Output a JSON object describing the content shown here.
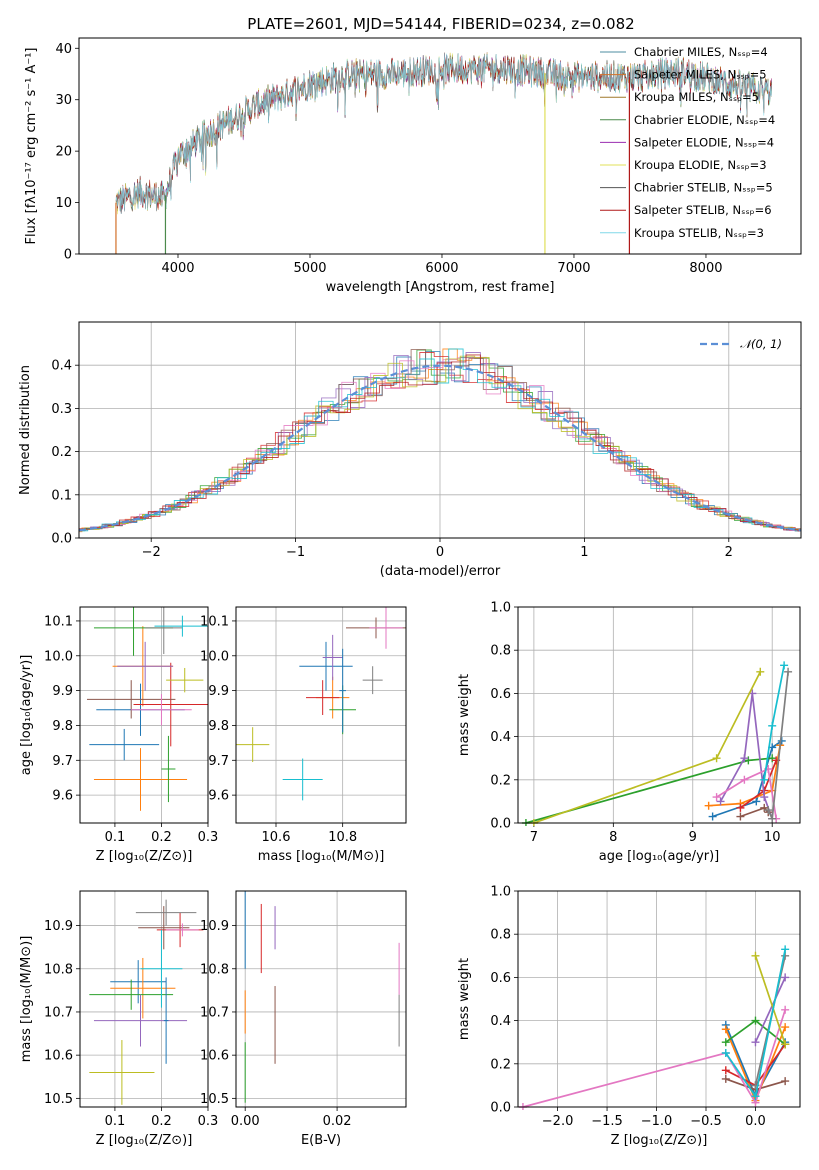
{
  "figure": {
    "title": "PLATE=2601, MJD=54144, FIBERID=0234, z=0.082"
  },
  "colors": {
    "series": [
      "#1f77b4",
      "#ff7f0e",
      "#2ca02c",
      "#d62728",
      "#9467bd",
      "#8c564b",
      "#e377c2",
      "#7f7f7f",
      "#bcbd22",
      "#17becf"
    ],
    "spectrum_models": [
      "#4c8ca0",
      "#d2702a",
      "#a0782a",
      "#4c8a4c",
      "#9a2db0",
      "#e0e05a",
      "#555555",
      "#b01818",
      "#80d8e8"
    ],
    "gaussian": "#5b8fd6",
    "grid": "#b0b0b0"
  },
  "chart_data": [
    {
      "id": "spectrum",
      "type": "line",
      "xlabel": "wavelength [Angstrom, rest frame]",
      "ylabel": "Flux [fλ10⁻¹⁷ erg cm⁻² s⁻¹ A⁻¹]",
      "xlim": [
        3250,
        8720
      ],
      "ylim": [
        0,
        42
      ],
      "xticks": [
        4000,
        5000,
        6000,
        7000,
        8000
      ],
      "yticks": [
        0,
        10,
        20,
        30,
        40
      ],
      "grid": false,
      "legend_position": "right",
      "series": [
        {
          "name": "Chabrier MILES, Nₛₛₚ=4"
        },
        {
          "name": "Salpeter MILES, Nₛₛₚ=5"
        },
        {
          "name": "Kroupa MILES, Nₛₛₚ=5"
        },
        {
          "name": "Chabrier ELODIE, Nₛₛₚ=4"
        },
        {
          "name": "Salpeter ELODIE, Nₛₛₚ=4"
        },
        {
          "name": "Kroupa ELODIE, Nₛₛₚ=3"
        },
        {
          "name": "Chabrier STELIB, Nₛₛₚ=5"
        },
        {
          "name": "Salpeter STELIB, Nₛₛₚ=6"
        },
        {
          "name": "Kroupa STELIB, Nₛₛₚ=3"
        }
      ],
      "continuum": {
        "x": [
          3530,
          3700,
          3900,
          4000,
          4200,
          4400,
          4600,
          4800,
          5000,
          5300,
          5600,
          6000,
          6500,
          7000,
          7500,
          7800,
          8200,
          8500
        ],
        "y": [
          10,
          12,
          11,
          19,
          23,
          26,
          29,
          31,
          33,
          35,
          35,
          36,
          36,
          34.5,
          34.5,
          35.5,
          33,
          31.5
        ]
      },
      "dips": [
        {
          "x": 3530,
          "y": 0
        },
        {
          "x": 3905,
          "y": 0
        },
        {
          "x": 6780,
          "y": 0
        },
        {
          "x": 7420,
          "y": 0
        }
      ]
    },
    {
      "id": "residuals",
      "type": "histogram",
      "xlabel": "(data-model)/error",
      "ylabel": "Normed distribution",
      "xlim": [
        -2.5,
        2.5
      ],
      "ylim": [
        0,
        0.5
      ],
      "xticks": [
        -2,
        -1,
        0,
        1,
        2
      ],
      "yticks": [
        0.0,
        0.1,
        0.2,
        0.3,
        0.4
      ],
      "grid": true,
      "legend_position": "top-right",
      "reference": {
        "name": "𝒩(0, 1)",
        "mean": 0,
        "sigma": 1
      }
    },
    {
      "id": "age_vs_Z",
      "type": "scatter",
      "xlabel": "Z [log₁₀(Z/Z⊙)]",
      "ylabel": "age  [log₁₀(age/yr)]",
      "xlim": [
        0.025,
        0.3
      ],
      "ylim": [
        9.52,
        10.14
      ],
      "xticks": [
        0.1,
        0.2,
        0.3
      ],
      "yticks": [
        9.6,
        9.7,
        9.8,
        9.9,
        10.0,
        10.1
      ],
      "grid": true,
      "points": [
        {
          "x": 0.155,
          "xerr": 0.095,
          "y": 9.845,
          "yerr": 0.075
        },
        {
          "x": 0.16,
          "xerr": 0.065,
          "y": 9.97,
          "yerr": 0.115
        },
        {
          "x": 0.14,
          "xerr": 0.085,
          "y": 10.08,
          "yerr": 0.08
        },
        {
          "x": 0.22,
          "xerr": 0.08,
          "y": 9.86,
          "yerr": 0.12
        },
        {
          "x": 0.165,
          "xerr": 0.06,
          "y": 9.97,
          "yerr": 0.07
        },
        {
          "x": 0.135,
          "xerr": 0.095,
          "y": 9.875,
          "yerr": 0.055
        },
        {
          "x": 0.2,
          "xerr": 0.065,
          "y": 9.845,
          "yerr": 0.045
        },
        {
          "x": 0.205,
          "xerr": 0.04,
          "y": 10.08,
          "yerr": 0.075
        },
        {
          "x": 0.25,
          "xerr": 0.04,
          "y": 9.93,
          "yerr": 0.035
        },
        {
          "x": 0.245,
          "xerr": 0.06,
          "y": 10.085,
          "yerr": 0.03
        },
        {
          "x": 0.12,
          "xerr": 0.075,
          "y": 9.745,
          "yerr": 0.045
        },
        {
          "x": 0.155,
          "xerr": 0.1,
          "y": 9.645,
          "yerr": 0.09
        },
        {
          "x": 0.215,
          "xerr": 0.015,
          "y": 9.675,
          "yerr": 0.095
        }
      ]
    },
    {
      "id": "age_vs_mass",
      "type": "scatter",
      "xlabel": "mass [log₁₀(M/M⊙)]",
      "ylabel": "",
      "xlim": [
        10.48,
        10.99
      ],
      "ylim": [
        9.52,
        10.14
      ],
      "xticks": [
        10.6,
        10.8
      ],
      "yticks": [
        9.6,
        9.7,
        9.8,
        9.9,
        10.0,
        10.1
      ],
      "grid": true,
      "points": [
        {
          "x": 10.75,
          "xerr": 0.08,
          "y": 9.97,
          "yerr": 0.07
        },
        {
          "x": 10.77,
          "xerr": 0.05,
          "y": 9.88,
          "yerr": 0.06
        },
        {
          "x": 10.8,
          "xerr": 0.04,
          "y": 9.845,
          "yerr": 0.07
        },
        {
          "x": 10.74,
          "xerr": 0.05,
          "y": 9.88,
          "yerr": 0.05
        },
        {
          "x": 10.77,
          "xerr": 0.03,
          "y": 9.995,
          "yerr": 0.065
        },
        {
          "x": 10.9,
          "xerr": 0.09,
          "y": 10.08,
          "yerr": 0.03
        },
        {
          "x": 10.93,
          "xerr": 0.05,
          "y": 10.08,
          "yerr": 0.06
        },
        {
          "x": 10.89,
          "xerr": 0.03,
          "y": 9.93,
          "yerr": 0.04
        },
        {
          "x": 10.53,
          "xerr": 0.05,
          "y": 9.745,
          "yerr": 0.05
        },
        {
          "x": 10.68,
          "xerr": 0.06,
          "y": 9.645,
          "yerr": 0.06
        },
        {
          "x": 10.8,
          "xerr": 0.01,
          "y": 9.9,
          "yerr": 0.12
        }
      ]
    },
    {
      "id": "mass_weight_vs_age",
      "type": "line",
      "xlabel": "age  [log₁₀(age/yr)]",
      "ylabel": "mass weight",
      "xlim": [
        6.8,
        10.35
      ],
      "ylim": [
        0,
        1.0
      ],
      "xticks": [
        7,
        8,
        9,
        10
      ],
      "yticks": [
        0.0,
        0.2,
        0.4,
        0.6,
        0.8,
        1.0
      ],
      "grid": true,
      "series": [
        {
          "x": [
            9.25,
            9.8,
            10.0,
            10.12
          ],
          "y": [
            0.03,
            0.1,
            0.35,
            0.38
          ]
        },
        {
          "x": [
            9.2,
            9.6,
            10.0,
            10.1
          ],
          "y": [
            0.08,
            0.09,
            0.15,
            0.36
          ]
        },
        {
          "x": [
            6.9,
            9.7,
            10.0
          ],
          "y": [
            0.0,
            0.29,
            0.3
          ]
        },
        {
          "x": [
            9.6,
            9.9,
            10.05
          ],
          "y": [
            0.07,
            0.15,
            0.29
          ]
        },
        {
          "x": [
            9.35,
            9.65,
            9.75,
            9.9,
            10.0
          ],
          "y": [
            0.1,
            0.3,
            0.6,
            0.12,
            0.02
          ]
        },
        {
          "x": [
            9.6,
            9.9,
            9.95
          ],
          "y": [
            0.03,
            0.07,
            0.05
          ]
        },
        {
          "x": [
            9.3,
            9.65,
            9.95,
            10.05
          ],
          "y": [
            0.12,
            0.2,
            0.25,
            0.02
          ]
        },
        {
          "x": [
            9.95,
            10.0,
            10.2
          ],
          "y": [
            0.06,
            0.02,
            0.7
          ]
        },
        {
          "x": [
            7.0,
            9.3,
            9.85
          ],
          "y": [
            0.0,
            0.3,
            0.7
          ]
        },
        {
          "x": [
            9.9,
            10.0,
            10.15
          ],
          "y": [
            0.2,
            0.45,
            0.73
          ]
        }
      ]
    },
    {
      "id": "mass_vs_Z",
      "type": "scatter",
      "xlabel": "Z [log₁₀(Z/Z⊙)]",
      "ylabel": "mass [log₁₀(M/M⊙)]",
      "xlim": [
        0.025,
        0.3
      ],
      "ylim": [
        10.48,
        10.98
      ],
      "xticks": [
        0.1,
        0.2,
        0.3
      ],
      "yticks": [
        10.5,
        10.6,
        10.7,
        10.8,
        10.9
      ],
      "grid": true,
      "points": [
        {
          "x": 0.15,
          "xerr": 0.06,
          "y": 10.77,
          "yerr": 0.05
        },
        {
          "x": 0.16,
          "xerr": 0.07,
          "y": 10.755,
          "yerr": 0.07
        },
        {
          "x": 0.135,
          "xerr": 0.09,
          "y": 10.74,
          "yerr": 0.035
        },
        {
          "x": 0.24,
          "xerr": 0.05,
          "y": 10.89,
          "yerr": 0.04
        },
        {
          "x": 0.155,
          "xerr": 0.1,
          "y": 10.68,
          "yerr": 0.06
        },
        {
          "x": 0.205,
          "xerr": 0.055,
          "y": 10.895,
          "yerr": 0.05
        },
        {
          "x": 0.245,
          "xerr": 0.035,
          "y": 10.89,
          "yerr": 0.015
        },
        {
          "x": 0.21,
          "xerr": 0.065,
          "y": 10.93,
          "yerr": 0.03
        },
        {
          "x": 0.115,
          "xerr": 0.07,
          "y": 10.56,
          "yerr": 0.075
        },
        {
          "x": 0.2,
          "xerr": 0.045,
          "y": 10.8,
          "yerr": 0.09
        },
        {
          "x": 0.21,
          "xerr": 0.005,
          "y": 10.68,
          "yerr": 0.1
        }
      ]
    },
    {
      "id": "mass_vs_EBV",
      "type": "scatter",
      "xlabel": "E(B-V)",
      "ylabel": "",
      "xlim": [
        -0.002,
        0.035
      ],
      "ylim": [
        10.48,
        10.98
      ],
      "xticks": [
        0.0,
        0.02
      ],
      "yticks": [
        10.5,
        10.6,
        10.7,
        10.8,
        10.9
      ],
      "grid": true,
      "points": [
        {
          "x": 0.0,
          "xerr": 0,
          "y": 10.89,
          "yerr": 0.09
        },
        {
          "x": 0.0,
          "xerr": 0,
          "y": 10.7,
          "yerr": 0.05
        },
        {
          "x": 0.0,
          "xerr": 0,
          "y": 10.56,
          "yerr": 0.07
        },
        {
          "x": 0.0035,
          "xerr": 0,
          "y": 10.87,
          "yerr": 0.08
        },
        {
          "x": 0.0065,
          "xerr": 0,
          "y": 10.895,
          "yerr": 0.05
        },
        {
          "x": 0.0065,
          "xerr": 0,
          "y": 10.67,
          "yerr": 0.09
        },
        {
          "x": 0.0335,
          "xerr": 0,
          "y": 10.8,
          "yerr": 0.06
        },
        {
          "x": 0.0335,
          "xerr": 0,
          "y": 10.68,
          "yerr": 0.06
        }
      ]
    },
    {
      "id": "mass_weight_vs_Z",
      "type": "line",
      "xlabel": "Z [log₁₀(Z/Z⊙)]",
      "ylabel": "mass weight",
      "xlim": [
        -2.4,
        0.45
      ],
      "ylim": [
        0,
        1.0
      ],
      "xticks": [
        -2.0,
        -1.5,
        -1.0,
        -0.5,
        0.0
      ],
      "yticks": [
        0.0,
        0.2,
        0.4,
        0.6,
        0.8,
        1.0
      ],
      "grid": true,
      "series": [
        {
          "x": [
            -0.3,
            0.0,
            0.3
          ],
          "y": [
            0.38,
            0.05,
            0.3
          ]
        },
        {
          "x": [
            -0.3,
            0.0,
            0.3
          ],
          "y": [
            0.36,
            0.03,
            0.37
          ]
        },
        {
          "x": [
            -0.3,
            0.0,
            0.3
          ],
          "y": [
            0.3,
            0.4,
            0.29
          ]
        },
        {
          "x": [
            -0.3,
            0.0,
            0.3
          ],
          "y": [
            0.17,
            0.1,
            0.29
          ]
        },
        {
          "x": [
            0.0,
            0.3
          ],
          "y": [
            0.3,
            0.6
          ]
        },
        {
          "x": [
            -0.3,
            0.0,
            0.3
          ],
          "y": [
            0.13,
            0.08,
            0.12
          ]
        },
        {
          "x": [
            -2.35,
            -0.3,
            0.0,
            0.3
          ],
          "y": [
            0.0,
            0.25,
            0.02,
            0.45
          ]
        },
        {
          "x": [
            0.0,
            0.3
          ],
          "y": [
            0.1,
            0.7
          ]
        },
        {
          "x": [
            0.0,
            0.3
          ],
          "y": [
            0.7,
            0.29
          ]
        },
        {
          "x": [
            -0.3,
            0.0,
            0.3
          ],
          "y": [
            0.25,
            0.05,
            0.73
          ]
        }
      ]
    }
  ]
}
